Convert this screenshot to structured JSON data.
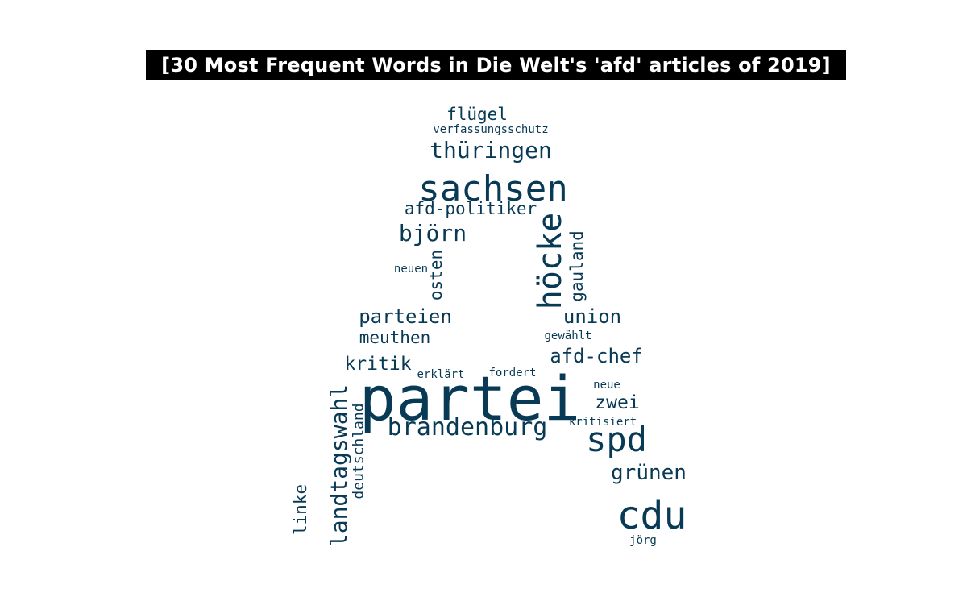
{
  "title": "[30 Most Frequent Words in Die Welt's 'afd' articles of 2019]",
  "colors": {
    "word": "#083a55",
    "title_bg": "#000000",
    "title_fg": "#ffffff",
    "background": "#ffffff"
  },
  "words": [
    {
      "text": "partei",
      "vertical": false
    },
    {
      "text": "sachsen",
      "vertical": false
    },
    {
      "text": "cdu",
      "vertical": false
    },
    {
      "text": "höcke",
      "vertical": true
    },
    {
      "text": "spd",
      "vertical": false
    },
    {
      "text": "brandenburg",
      "vertical": false
    },
    {
      "text": "landtagswahl",
      "vertical": true
    },
    {
      "text": "thüringen",
      "vertical": false
    },
    {
      "text": "björn",
      "vertical": false
    },
    {
      "text": "grünen",
      "vertical": false
    },
    {
      "text": "afd-chef",
      "vertical": false
    },
    {
      "text": "parteien",
      "vertical": false
    },
    {
      "text": "union",
      "vertical": false
    },
    {
      "text": "afd-politiker",
      "vertical": false
    },
    {
      "text": "gauland",
      "vertical": true
    },
    {
      "text": "kritik",
      "vertical": false
    },
    {
      "text": "zwei",
      "vertical": false
    },
    {
      "text": "flügel",
      "vertical": false
    },
    {
      "text": "meuthen",
      "vertical": false
    },
    {
      "text": "osten",
      "vertical": true
    },
    {
      "text": "linke",
      "vertical": true
    },
    {
      "text": "deutschland",
      "vertical": true
    },
    {
      "text": "verfassungsschutz",
      "vertical": false
    },
    {
      "text": "neuen",
      "vertical": false
    },
    {
      "text": "gewählt",
      "vertical": false
    },
    {
      "text": "erklärt",
      "vertical": false
    },
    {
      "text": "fordert",
      "vertical": false
    },
    {
      "text": "neue",
      "vertical": false
    },
    {
      "text": "kritisiert",
      "vertical": false
    },
    {
      "text": "jörg",
      "vertical": false
    }
  ]
}
